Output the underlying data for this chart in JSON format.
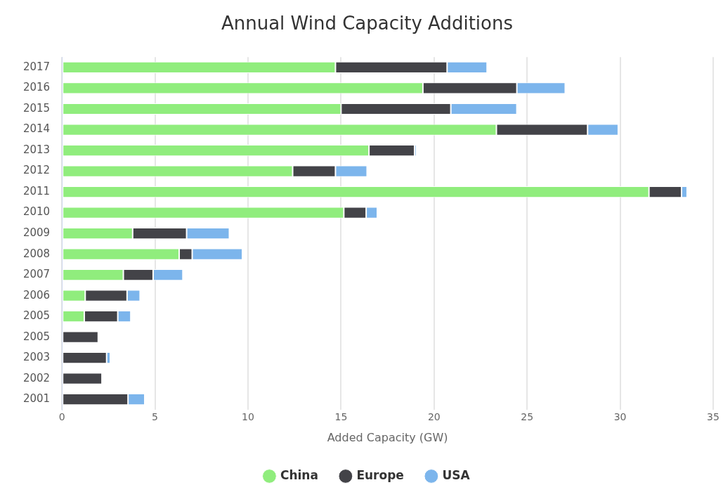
{
  "chart_data": {
    "type": "bar",
    "title": "Annual Wind Capacity Additions",
    "xlabel": "Added Capacity (GW)",
    "orientation": "horizontal",
    "stacked": true,
    "categories": [
      "2017",
      "2016",
      "2015",
      "2014",
      "2013",
      "2012",
      "2011",
      "2010",
      "2009",
      "2008",
      "2007",
      "2006",
      "2005",
      "2005",
      "2003",
      "2002",
      "2001"
    ],
    "series": [
      {
        "name": "China",
        "color": "#90ed7d",
        "values": [
          14.7,
          19.4,
          15.0,
          23.35,
          16.5,
          12.4,
          31.55,
          15.15,
          3.8,
          6.3,
          3.3,
          1.25,
          1.2,
          null,
          null,
          null,
          null
        ]
      },
      {
        "name": "Europe",
        "color": "#434348",
        "values": [
          6.0,
          5.05,
          5.9,
          4.9,
          2.45,
          2.3,
          1.75,
          1.2,
          2.9,
          0.7,
          1.6,
          2.25,
          1.8,
          1.95,
          2.4,
          2.15,
          3.55
        ]
      },
      {
        "name": "USA",
        "color": "#7cb5ec",
        "values": [
          2.15,
          2.6,
          3.55,
          1.65,
          0.1,
          1.7,
          0.3,
          0.6,
          2.3,
          2.7,
          1.6,
          0.7,
          0.7,
          null,
          0.2,
          null,
          0.9
        ]
      }
    ],
    "xlim": [
      0,
      35
    ],
    "xticks": [
      0,
      5,
      10,
      15,
      20,
      25,
      30,
      35
    ],
    "grid": "x",
    "legend": "bottom",
    "marker": "circle"
  }
}
